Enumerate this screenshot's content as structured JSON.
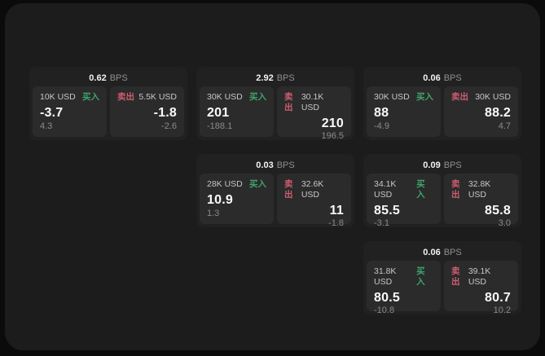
{
  "labels": {
    "bps_unit": "BPS",
    "buy": "买入",
    "sell": "卖出"
  },
  "colors": {
    "buy": "#3fa46a",
    "sell": "#cd5d6e",
    "background": "#0b0b0c",
    "screen": "#1c1c1d",
    "card": "#212122",
    "panel": "#2b2b2c"
  },
  "cards": [
    {
      "slot": {
        "row": 1,
        "col": 1
      },
      "bps": "0.62",
      "buy": {
        "amount": "10K USD",
        "value": "-3.7",
        "sub": "4.3"
      },
      "sell": {
        "amount": "5.5K USD",
        "value": "-1.8",
        "sub": "-2.6"
      }
    },
    {
      "slot": {
        "row": 1,
        "col": 2
      },
      "bps": "2.92",
      "buy": {
        "amount": "30K USD",
        "value": "201",
        "sub": "-188.1"
      },
      "sell": {
        "amount": "30.1K USD",
        "value": "210",
        "sub": "196.5"
      }
    },
    {
      "slot": {
        "row": 1,
        "col": 3
      },
      "bps": "0.06",
      "buy": {
        "amount": "30K USD",
        "value": "88",
        "sub": "-4.9"
      },
      "sell": {
        "amount": "30K USD",
        "value": "88.2",
        "sub": "4.7"
      }
    },
    {
      "slot": {
        "row": 2,
        "col": 2
      },
      "bps": "0.03",
      "buy": {
        "amount": "28K USD",
        "value": "10.9",
        "sub": "1.3"
      },
      "sell": {
        "amount": "32.6K USD",
        "value": "11",
        "sub": "-1.8"
      }
    },
    {
      "slot": {
        "row": 2,
        "col": 3
      },
      "bps": "0.09",
      "buy": {
        "amount": "34.1K USD",
        "value": "85.5",
        "sub": "-3.1"
      },
      "sell": {
        "amount": "32.8K USD",
        "value": "85.8",
        "sub": "3.0"
      }
    },
    {
      "slot": {
        "row": 3,
        "col": 3
      },
      "bps": "0.06",
      "buy": {
        "amount": "31.8K USD",
        "value": "80.5",
        "sub": "-10.8"
      },
      "sell": {
        "amount": "39.1K USD",
        "value": "80.7",
        "sub": "10.2"
      }
    }
  ]
}
